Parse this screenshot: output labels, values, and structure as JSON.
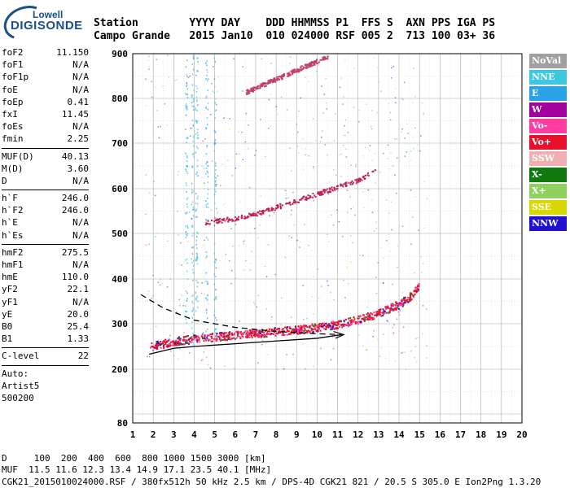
{
  "logo": {
    "top": "Lowell",
    "main": "DIGISONDE"
  },
  "header": {
    "labels": "Station        YYYY DAY    DDD HHMMSS P1  FFS S  AXN PPS IGA PS",
    "values": "Campo Grande   2015 Jan10  010 024000 RSF 005 2  713 100 03+ 36"
  },
  "params": [
    {
      "k": "foF2",
      "v": "11.150"
    },
    {
      "k": "foF1",
      "v": "N/A"
    },
    {
      "k": "foF1p",
      "v": "N/A"
    },
    {
      "k": "foE",
      "v": "N/A"
    },
    {
      "k": "foEp",
      "v": "0.41"
    },
    {
      "k": "fxI",
      "v": "11.45"
    },
    {
      "k": "foEs",
      "v": "N/A"
    },
    {
      "k": "fmin",
      "v": "2.25"
    },
    {
      "sep": true
    },
    {
      "k": "MUF(D)",
      "v": "40.13"
    },
    {
      "k": "M(D)",
      "v": "3.60"
    },
    {
      "k": "D",
      "v": "N/A"
    },
    {
      "sep": true
    },
    {
      "k": "h`F",
      "v": "246.0"
    },
    {
      "k": "h`F2",
      "v": "246.0"
    },
    {
      "k": "h`E",
      "v": "N/A"
    },
    {
      "k": "h`Es",
      "v": "N/A"
    },
    {
      "sep": true
    },
    {
      "k": "hmF2",
      "v": "275.5"
    },
    {
      "k": "hmF1",
      "v": "N/A"
    },
    {
      "k": "hmE",
      "v": "110.0"
    },
    {
      "k": "yF2",
      "v": "22.1"
    },
    {
      "k": "yF1",
      "v": "N/A"
    },
    {
      "k": "yE",
      "v": "20.0"
    },
    {
      "k": "B0",
      "v": "25.4"
    },
    {
      "k": "B1",
      "v": "1.33"
    },
    {
      "sep": true
    },
    {
      "k": "C-level",
      "v": "22"
    },
    {
      "sep": true
    },
    {
      "k": "Auto:",
      "v": ""
    },
    {
      "k": "Artist5",
      "v": ""
    },
    {
      "k": "500200",
      "v": ""
    }
  ],
  "legend": [
    {
      "label": "NoVal",
      "color": "#a0a0a0"
    },
    {
      "label": "NNE",
      "color": "#3ec8e0"
    },
    {
      "label": "E",
      "color": "#2aa3e6"
    },
    {
      "label": "W",
      "color": "#a0009c"
    },
    {
      "label": "Vo-",
      "color": "#ff3ca0"
    },
    {
      "label": "Vo+",
      "color": "#e8102a"
    },
    {
      "label": "SSW",
      "color": "#f0b0b0"
    },
    {
      "label": "X-",
      "color": "#107a10"
    },
    {
      "label": "X+",
      "color": "#8fd060"
    },
    {
      "label": "SSE",
      "color": "#d8d800"
    },
    {
      "label": "NNW",
      "color": "#2010d0"
    }
  ],
  "footer": {
    "line1": "D     100  200  400  600  800 1000 1500 3000 [km]",
    "line2": "MUF  11.5 11.6 12.3 13.4 14.9 17.1 23.5 40.1 [MHz]",
    "line3": "CGK21_2015010024000.RSF / 380fx512h 50 kHz 2.5 km / DPS-4D CGK21 821 / 20.5 S 305.0 E Ion2Png 1.3.20"
  },
  "chart_data": {
    "type": "scatter",
    "x_ticks": [
      1,
      2,
      3,
      4,
      5,
      6,
      7,
      8,
      9,
      10,
      11,
      12,
      13,
      14,
      15,
      16,
      17,
      18,
      19,
      20
    ],
    "y_ticks": [
      80,
      200,
      300,
      400,
      500,
      600,
      700,
      800,
      900
    ],
    "xlim": [
      1,
      20
    ],
    "ylim": [
      80,
      900
    ],
    "grid": true,
    "traces": [
      {
        "name": "O-trace F layer",
        "color": "#e8102a",
        "x": [
          1.8,
          3,
          4,
          5,
          6,
          7,
          8,
          9,
          10,
          11,
          12,
          13,
          14,
          14.6,
          15
        ],
        "y": [
          250,
          262,
          268,
          272,
          276,
          280,
          284,
          288,
          293,
          300,
          310,
          325,
          345,
          365,
          390
        ]
      },
      {
        "name": "second-hop",
        "color": "#c02050",
        "x": [
          4.5,
          6,
          7,
          8,
          9,
          10,
          11,
          12,
          12.8
        ],
        "y": [
          525,
          535,
          545,
          560,
          575,
          590,
          605,
          620,
          640
        ]
      },
      {
        "name": "third-hop",
        "color": "#c04070",
        "x": [
          6.5,
          7.5,
          8.5,
          9.5,
          10.5
        ],
        "y": [
          815,
          835,
          855,
          875,
          895
        ]
      }
    ],
    "profile": {
      "x": [
        1.8,
        3,
        4,
        6,
        8,
        10,
        11.2
      ],
      "y": [
        233,
        246,
        250,
        256,
        262,
        268,
        276
      ]
    },
    "dashed": {
      "x": [
        1.4,
        2.5,
        4,
        6,
        8,
        10,
        11.2
      ],
      "y": [
        365,
        335,
        308,
        292,
        283,
        278,
        276
      ]
    }
  }
}
